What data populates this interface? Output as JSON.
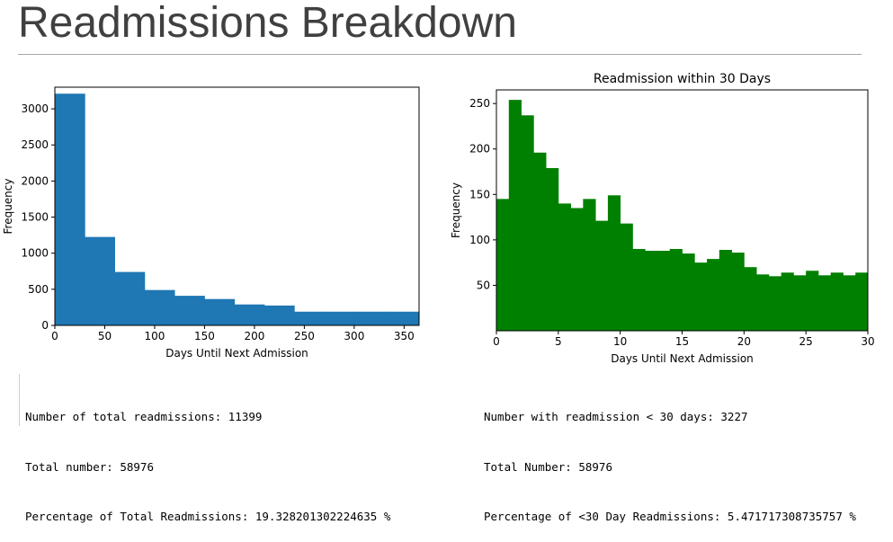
{
  "page": {
    "title": "Readmissions Breakdown"
  },
  "chart_data": [
    {
      "type": "bar",
      "title": "",
      "xlabel": "Days Until Next Admission",
      "ylabel": "Frequency",
      "xlim": [
        0,
        365
      ],
      "ylim": [
        0,
        3300
      ],
      "xticks": [
        0,
        50,
        100,
        150,
        200,
        250,
        300,
        350
      ],
      "yticks": [
        0,
        500,
        1000,
        1500,
        2000,
        2500,
        3000
      ],
      "color": "#1f77b4",
      "grid": false,
      "bin_edges": [
        0,
        30,
        60,
        90,
        120,
        150,
        180,
        210,
        240,
        270,
        300,
        330,
        365
      ],
      "values": [
        3210,
        1225,
        740,
        490,
        410,
        365,
        290,
        275,
        190,
        190,
        190,
        190
      ]
    },
    {
      "type": "bar",
      "title": "Readmission within 30 Days",
      "xlabel": "Days Until Next Admission",
      "ylabel": "Frequency",
      "xlim": [
        0,
        30
      ],
      "ylim": [
        0,
        265
      ],
      "xticks": [
        0,
        5,
        10,
        15,
        20,
        25,
        30
      ],
      "yticks": [
        50,
        100,
        150,
        200,
        250
      ],
      "color": "#008000",
      "grid": false,
      "bin_width": 1.0,
      "values": [
        145,
        254,
        237,
        196,
        179,
        140,
        135,
        145,
        121,
        149,
        118,
        90,
        88,
        88,
        90,
        85,
        75,
        79,
        89,
        86,
        70,
        62,
        60,
        64,
        61,
        66,
        61,
        64,
        61,
        64
      ]
    }
  ],
  "output_left": {
    "line1": "Number of total readmissions: 11399",
    "line2": "Total number: 58976",
    "line3": "Percentage of Total Readmissions: 19.328201302224635 %"
  },
  "output_right": {
    "line1": "Number with readmission < 30 days: 3227",
    "line2": "Total Number: 58976",
    "line3": "Percentage of <30 Day Readmissions: 5.471717308735757 %"
  }
}
